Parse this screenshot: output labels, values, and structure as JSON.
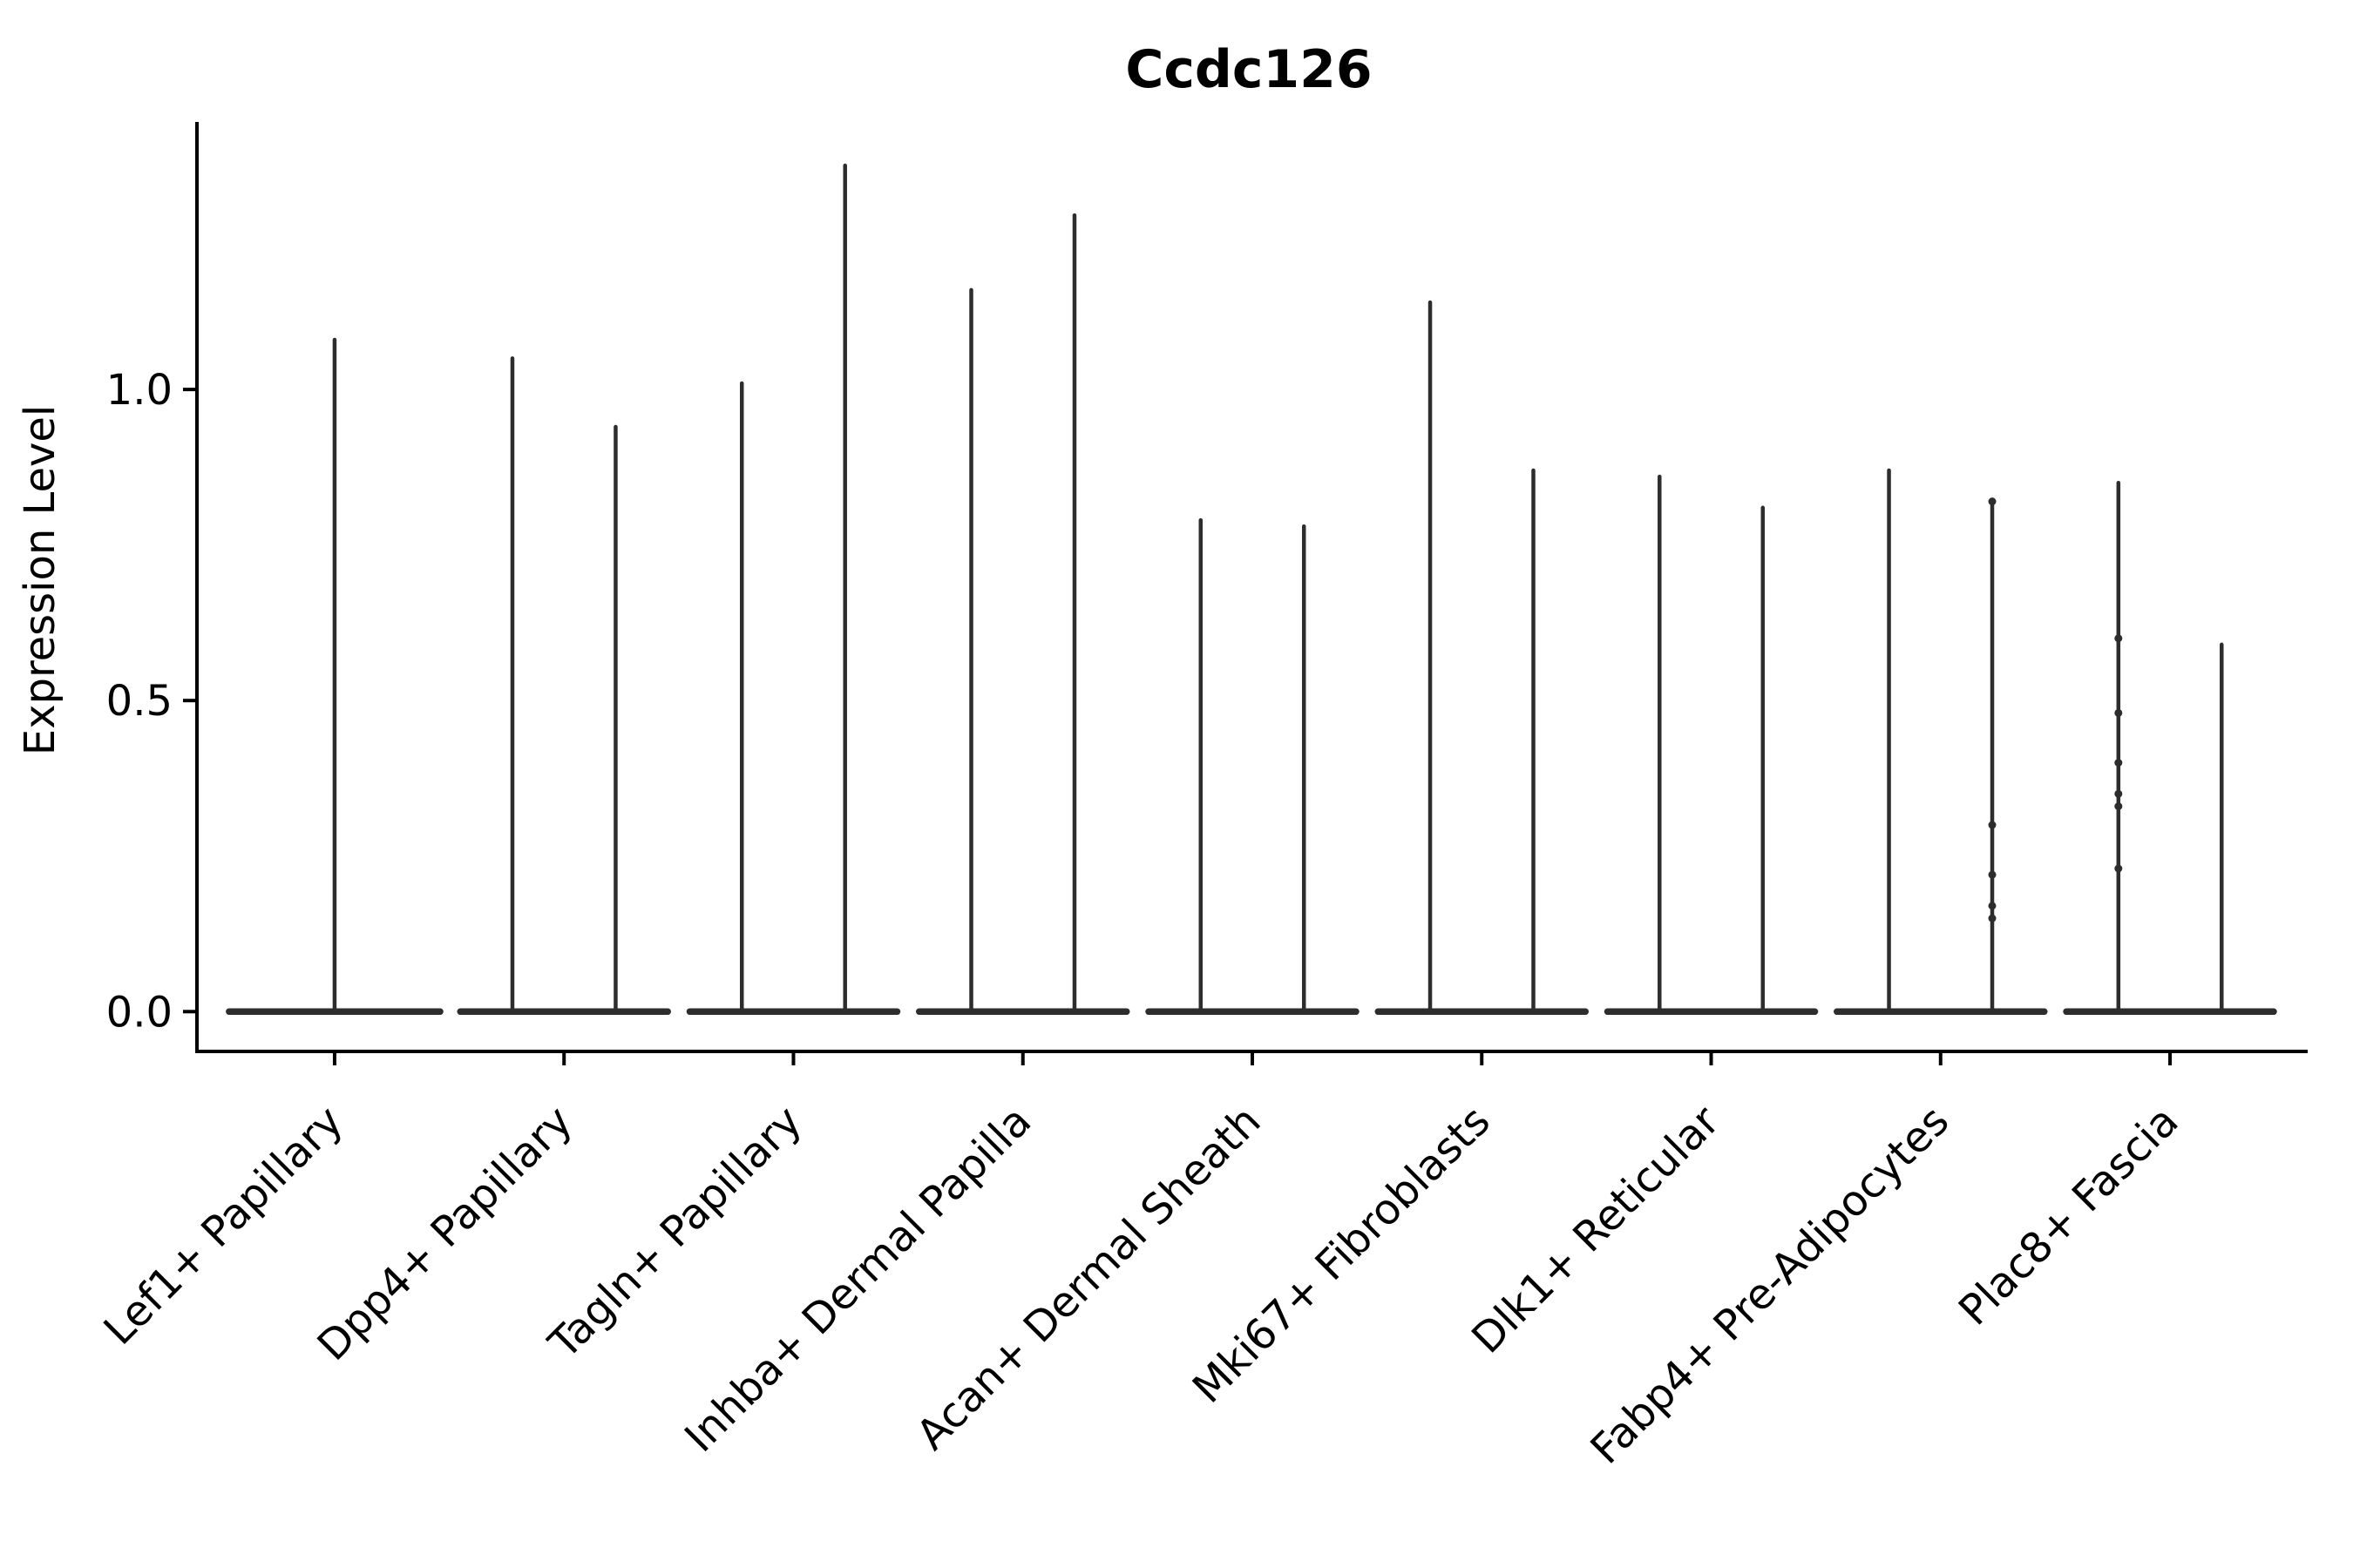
{
  "figure": {
    "background": "#ffffff"
  },
  "chart_data": {
    "type": "violin",
    "title": "Ccdc126",
    "ylabel": "Expression Level",
    "xlabel": "",
    "categories": [
      "Lef1+ Papillary",
      "Dpp4+ Papillary",
      "Tagln+ Papillary",
      "Inhba+ Dermal Papilla",
      "Acan+ Dermal Sheath",
      "Mki67+ Fibroblasts",
      "Dlk1+ Reticular",
      "Fabp4+ Pre-Adipocytes",
      "Plac8+ Fascia"
    ],
    "axes": {
      "yticks": [
        0.0,
        0.5,
        1.0
      ],
      "ytick_labels": [
        "0.0",
        "0.5",
        "1.0"
      ],
      "ylim": [
        -0.064,
        1.43
      ],
      "xlim_units": [
        -0.6,
        8.6
      ],
      "grid": false,
      "legend": "none",
      "x_label_rotation_deg": 45
    },
    "style": {
      "violin_color": "#2d2d2d",
      "point_color": "#2d2d2d",
      "axis_color": "#000000"
    },
    "violins": [
      {
        "category": "Lef1+ Papillary",
        "cat_index": 0,
        "offset": 0.0,
        "half_width": 0.46,
        "max": 1.08,
        "points": []
      },
      {
        "category": "Dpp4+ Papillary",
        "cat_index": 1,
        "offset": -0.225,
        "half_width": 0.227,
        "max": 1.05,
        "points": []
      },
      {
        "category": "Dpp4+ Papillary",
        "cat_index": 1,
        "offset": 0.225,
        "half_width": 0.227,
        "max": 0.94,
        "points": []
      },
      {
        "category": "Tagln+ Papillary",
        "cat_index": 2,
        "offset": -0.225,
        "half_width": 0.227,
        "max": 1.01,
        "points": []
      },
      {
        "category": "Tagln+ Papillary",
        "cat_index": 2,
        "offset": 0.225,
        "half_width": 0.227,
        "max": 1.36,
        "points": []
      },
      {
        "category": "Inhba+ Dermal Papilla",
        "cat_index": 3,
        "offset": -0.225,
        "half_width": 0.227,
        "max": 1.16,
        "points": []
      },
      {
        "category": "Inhba+ Dermal Papilla",
        "cat_index": 3,
        "offset": 0.225,
        "half_width": 0.227,
        "max": 1.28,
        "points": []
      },
      {
        "category": "Acan+ Dermal Sheath",
        "cat_index": 4,
        "offset": -0.225,
        "half_width": 0.227,
        "max": 0.79,
        "points": []
      },
      {
        "category": "Acan+ Dermal Sheath",
        "cat_index": 4,
        "offset": 0.225,
        "half_width": 0.227,
        "max": 0.78,
        "points": []
      },
      {
        "category": "Mki67+ Fibroblasts",
        "cat_index": 5,
        "offset": -0.225,
        "half_width": 0.227,
        "max": 1.14,
        "points": []
      },
      {
        "category": "Mki67+ Fibroblasts",
        "cat_index": 5,
        "offset": 0.225,
        "half_width": 0.227,
        "max": 0.87,
        "points": []
      },
      {
        "category": "Dlk1+ Reticular",
        "cat_index": 6,
        "offset": -0.225,
        "half_width": 0.227,
        "max": 0.86,
        "points": []
      },
      {
        "category": "Dlk1+ Reticular",
        "cat_index": 6,
        "offset": 0.225,
        "half_width": 0.227,
        "max": 0.81,
        "points": []
      },
      {
        "category": "Fabp4+ Pre-Adipocytes",
        "cat_index": 7,
        "offset": -0.225,
        "half_width": 0.227,
        "max": 0.87,
        "points": []
      },
      {
        "category": "Fabp4+ Pre-Adipocytes",
        "cat_index": 7,
        "offset": 0.225,
        "half_width": 0.227,
        "max": 0.82,
        "points": [
          0.82,
          0.3,
          0.22,
          0.17,
          0.15
        ]
      },
      {
        "category": "Plac8+ Fascia",
        "cat_index": 8,
        "offset": -0.225,
        "half_width": 0.227,
        "max": 0.85,
        "points": [
          0.6,
          0.48,
          0.4,
          0.35,
          0.33,
          0.23
        ]
      },
      {
        "category": "Plac8+ Fascia",
        "cat_index": 8,
        "offset": 0.225,
        "half_width": 0.227,
        "max": 0.59,
        "points": []
      }
    ]
  }
}
